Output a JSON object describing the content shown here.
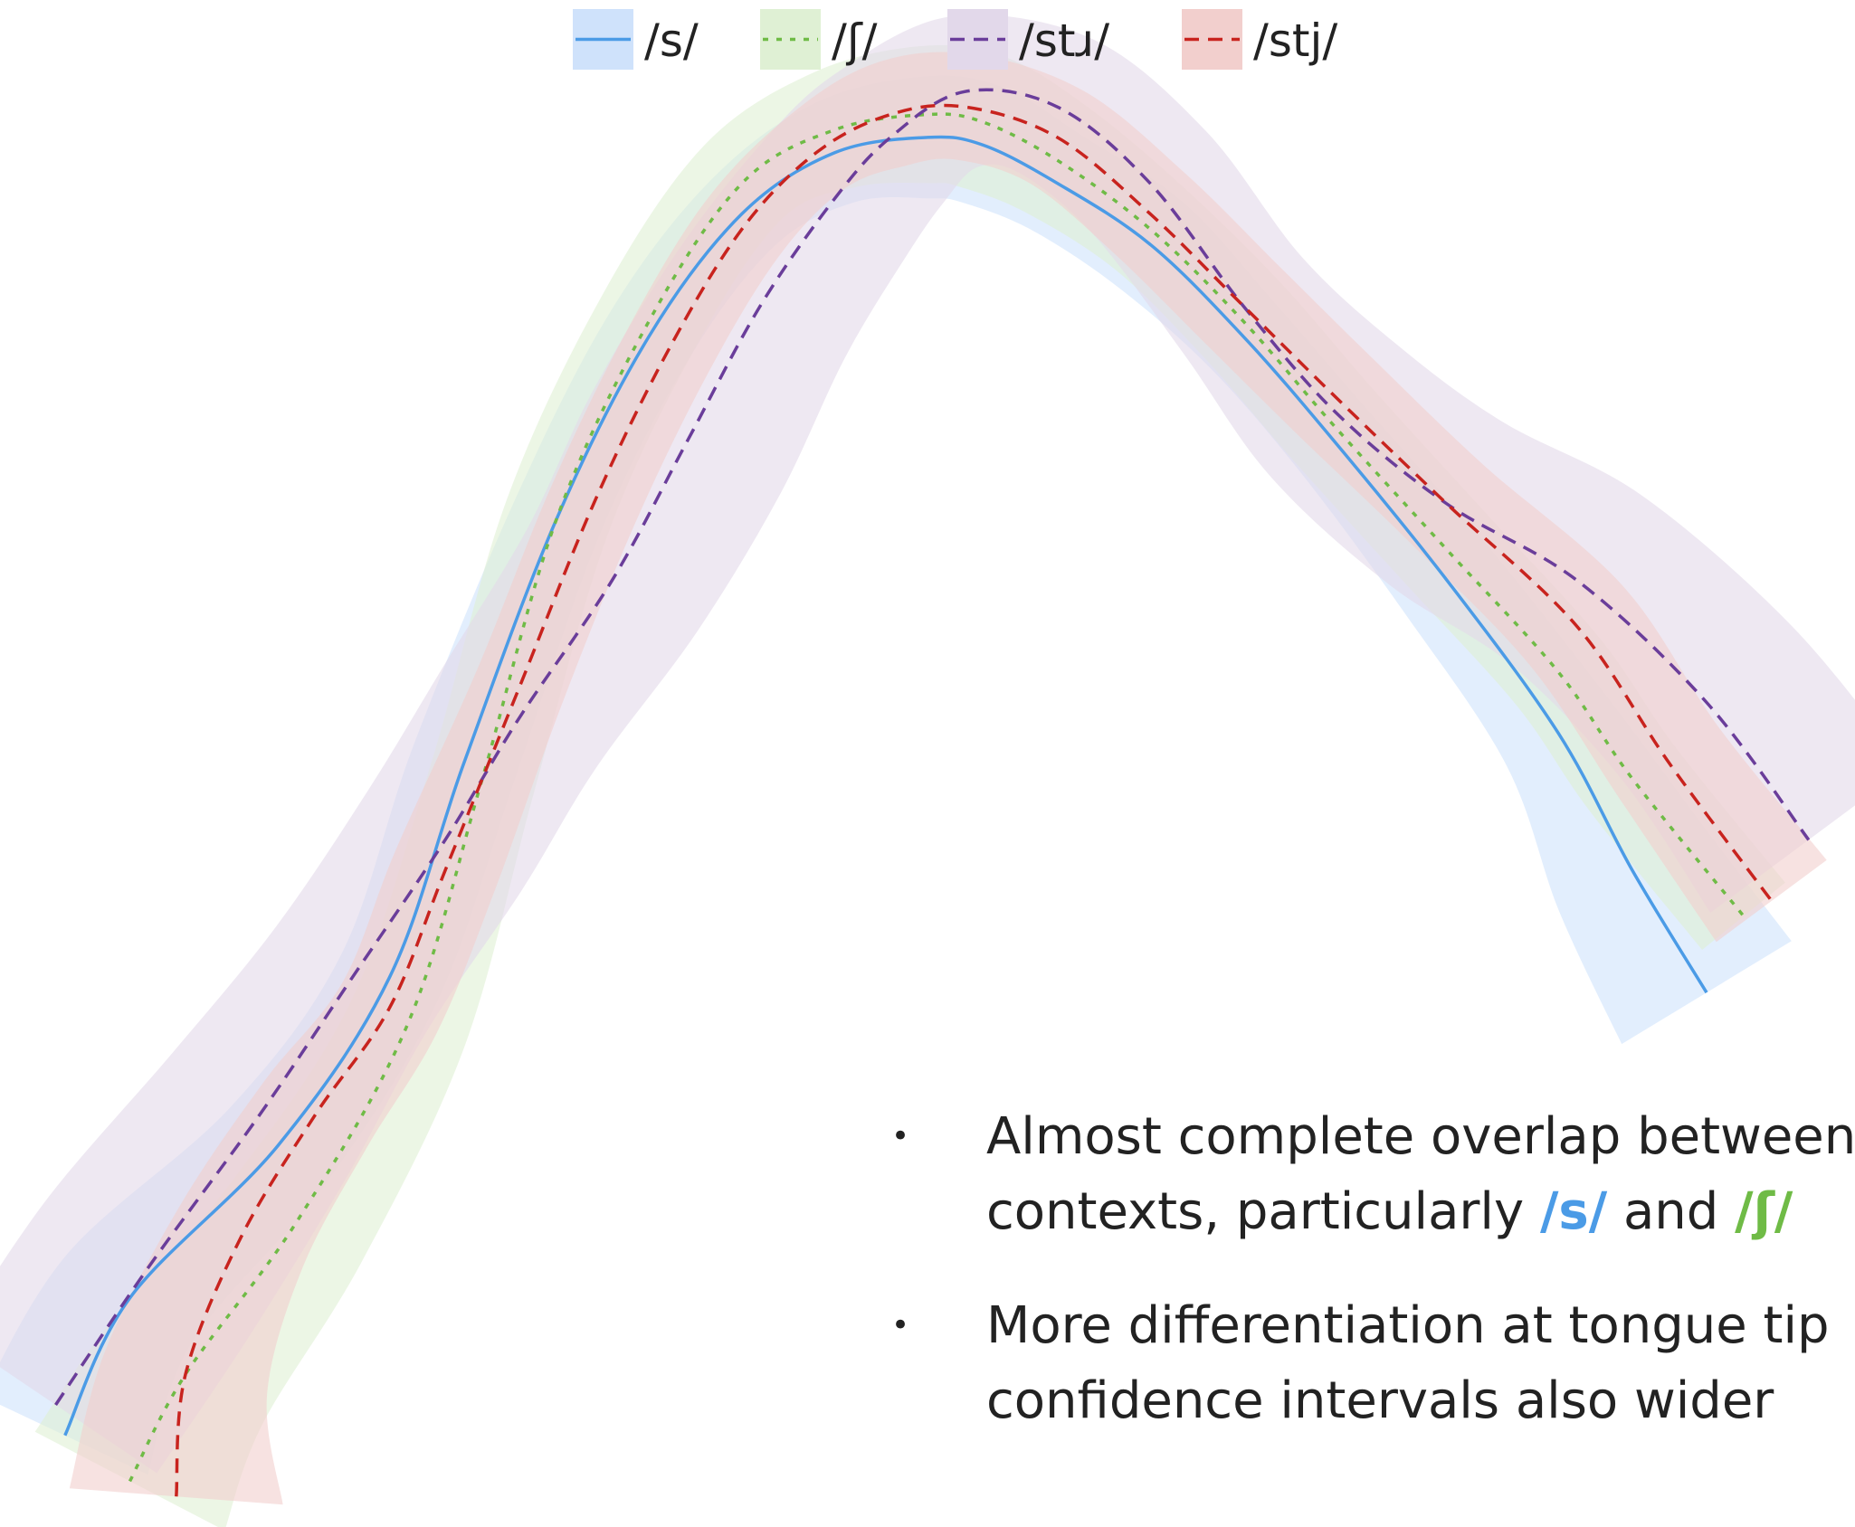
{
  "chart_data": {
    "type": "line",
    "xlabel": "",
    "ylabel": "",
    "legend": "top-center",
    "grid": false,
    "axes_visible": false,
    "xlim": [
      0,
      1
    ],
    "ylim": [
      0,
      1
    ],
    "series": [
      {
        "name": "/s/",
        "color": "#4b9be6",
        "dash": "solid",
        "x": [
          0.035,
          0.07,
          0.15,
          0.21,
          0.25,
          0.3,
          0.35,
          0.4,
          0.45,
          0.5,
          0.53,
          0.57,
          0.62,
          0.67,
          0.72,
          0.78,
          0.84,
          0.88,
          0.92
        ],
        "y": [
          0.06,
          0.15,
          0.25,
          0.36,
          0.5,
          0.66,
          0.78,
          0.86,
          0.9,
          0.91,
          0.905,
          0.88,
          0.84,
          0.78,
          0.71,
          0.62,
          0.52,
          0.43,
          0.35
        ],
        "ci": [
          0.06,
          0.05,
          0.04,
          0.035,
          0.035,
          0.03,
          0.03,
          0.03,
          0.035,
          0.04,
          0.04,
          0.035,
          0.035,
          0.03,
          0.03,
          0.035,
          0.04,
          0.055,
          0.065
        ]
      },
      {
        "name": "/ʃ/",
        "color": "#6fbb46",
        "dash": "dotted",
        "x": [
          0.07,
          0.1,
          0.16,
          0.22,
          0.26,
          0.3,
          0.35,
          0.4,
          0.45,
          0.5,
          0.53,
          0.57,
          0.62,
          0.67,
          0.72,
          0.78,
          0.84,
          0.88,
          0.94
        ],
        "y": [
          0.03,
          0.1,
          0.2,
          0.33,
          0.49,
          0.66,
          0.79,
          0.88,
          0.915,
          0.925,
          0.92,
          0.895,
          0.85,
          0.79,
          0.72,
          0.64,
          0.56,
          0.49,
          0.4
        ],
        "ci": [
          0.07,
          0.06,
          0.05,
          0.04,
          0.035,
          0.035,
          0.035,
          0.035,
          0.04,
          0.045,
          0.045,
          0.04,
          0.035,
          0.035,
          0.035,
          0.035,
          0.035,
          0.035,
          0.035
        ]
      },
      {
        "name": "/stɹ/",
        "color": "#6a3d9a",
        "dash": "dashed",
        "x": [
          0.03,
          0.08,
          0.14,
          0.19,
          0.24,
          0.28,
          0.33,
          0.37,
          0.41,
          0.45,
          0.48,
          0.52,
          0.57,
          0.62,
          0.67,
          0.72,
          0.78,
          0.85,
          0.92,
          0.975
        ],
        "y": [
          0.08,
          0.17,
          0.27,
          0.36,
          0.45,
          0.53,
          0.62,
          0.71,
          0.8,
          0.87,
          0.91,
          0.94,
          0.93,
          0.88,
          0.8,
          0.73,
          0.67,
          0.62,
          0.54,
          0.45
        ],
        "ci": [
          0.08,
          0.08,
          0.07,
          0.06,
          0.06,
          0.06,
          0.065,
          0.07,
          0.065,
          0.06,
          0.055,
          0.05,
          0.05,
          0.05,
          0.05,
          0.06,
          0.065,
          0.07,
          0.075,
          0.08
        ]
      },
      {
        "name": "/stj/",
        "color": "#c8231e",
        "dash": "dashed",
        "x": [
          0.095,
          0.1,
          0.13,
          0.17,
          0.21,
          0.24,
          0.28,
          0.32,
          0.36,
          0.4,
          0.44,
          0.48,
          0.52,
          0.57,
          0.62,
          0.67,
          0.72,
          0.78,
          0.85,
          0.9,
          0.955
        ],
        "y": [
          0.02,
          0.1,
          0.19,
          0.27,
          0.34,
          0.43,
          0.55,
          0.67,
          0.77,
          0.85,
          0.9,
          0.925,
          0.93,
          0.91,
          0.86,
          0.8,
          0.74,
          0.67,
          0.59,
          0.5,
          0.41
        ],
        "ci": [
          0.07,
          0.055,
          0.045,
          0.04,
          0.035,
          0.035,
          0.03,
          0.03,
          0.03,
          0.03,
          0.03,
          0.035,
          0.035,
          0.035,
          0.035,
          0.035,
          0.035,
          0.035,
          0.04,
          0.04,
          0.045
        ]
      }
    ]
  },
  "legend": {
    "items": [
      {
        "label": "/s/",
        "color": "#4b9be6",
        "band_color": "#cfe2fb",
        "dash": "solid"
      },
      {
        "label": "/ʃ/",
        "color": "#6fbb46",
        "band_color": "#dff0d4",
        "dash": "dotted"
      },
      {
        "label": "/stɹ/",
        "color": "#6a3d9a",
        "band_color": "#e2d8ea",
        "dash": "dashed"
      },
      {
        "label": "/stj/",
        "color": "#c8231e",
        "band_color": "#f2cfcd",
        "dash": "dashed"
      }
    ]
  },
  "notes": {
    "bullet_symbol": "•",
    "line1_part1": "Almost complete overlap between",
    "line1_part2": "contexts, particularly ",
    "line1_s": "/s/",
    "line1_and": " and ",
    "line1_sh": "/ʃ/",
    "line2_part1": "More differentiation at tongue tip",
    "line2_part2": "confidence intervals also wider",
    "s_color": "#4b9be6",
    "sh_color": "#6fbb46"
  }
}
